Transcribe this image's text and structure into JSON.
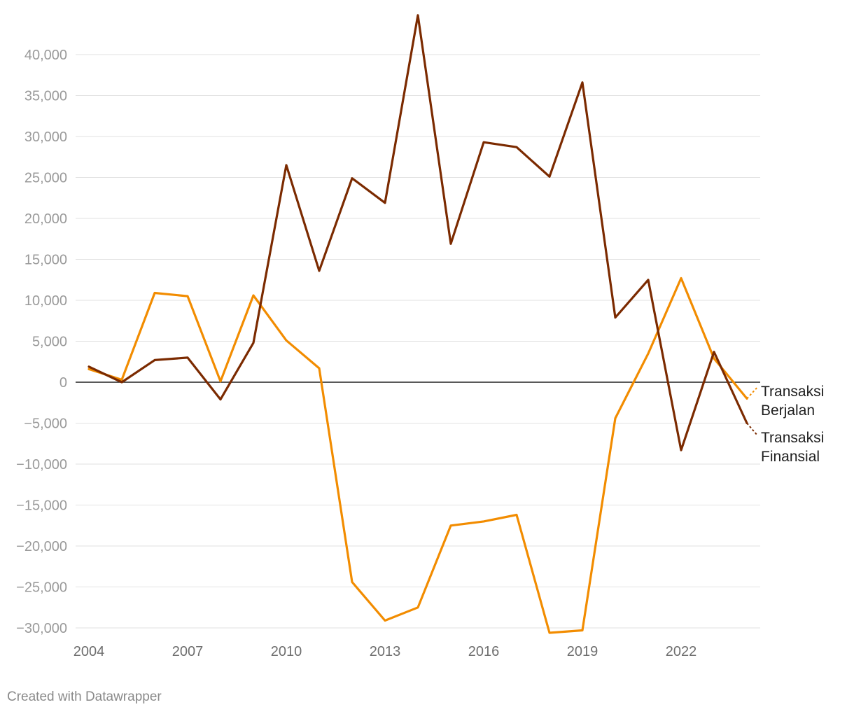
{
  "chart_data": {
    "type": "line",
    "title": "",
    "xlabel": "",
    "ylabel": "",
    "x": [
      2004,
      2005,
      2006,
      2007,
      2008,
      2009,
      2010,
      2011,
      2012,
      2013,
      2014,
      2015,
      2016,
      2017,
      2018,
      2019,
      2020,
      2021,
      2022,
      2023,
      2024
    ],
    "x_ticks": [
      "2004",
      "2007",
      "2010",
      "2013",
      "2016",
      "2019",
      "2022"
    ],
    "x_tick_values": [
      2004,
      2007,
      2010,
      2013,
      2016,
      2019,
      2022
    ],
    "y_ticks": [
      "40,000",
      "35,000",
      "30,000",
      "25,000",
      "20,000",
      "15,000",
      "10,000",
      "5,000",
      "0",
      "−5,000",
      "−10,000",
      "−15,000",
      "−20,000",
      "−25,000",
      "−30,000"
    ],
    "y_tick_values": [
      40000,
      35000,
      30000,
      25000,
      20000,
      15000,
      10000,
      5000,
      0,
      -5000,
      -10000,
      -15000,
      -20000,
      -25000,
      -30000
    ],
    "xlim": [
      2004,
      2024.4
    ],
    "ylim": [
      -30500,
      45000
    ],
    "grid": true,
    "series": [
      {
        "name": "Transaksi Berjalan",
        "label_lines": [
          "Transaksi",
          "Berjalan"
        ],
        "color": "#f28c00",
        "values": [
          1600,
          300,
          10900,
          10500,
          100,
          10600,
          5100,
          1700,
          -24400,
          -29100,
          -27500,
          -17500,
          -17000,
          -16200,
          -30600,
          -30300,
          -4400,
          3500,
          12700,
          2900,
          -2000
        ],
        "projection_end": [
          2024.3,
          -700
        ]
      },
      {
        "name": "Transaksi Finansial",
        "label_lines": [
          "Transaksi",
          "Finansial"
        ],
        "color": "#7b2a00",
        "values": [
          1900,
          0,
          2700,
          3000,
          -2100,
          4800,
          26500,
          13600,
          24900,
          21900,
          44800,
          16900,
          29300,
          28700,
          25100,
          36600,
          7900,
          12500,
          -8300,
          3700,
          -5000
        ],
        "projection_end": [
          2024.3,
          -6400
        ]
      }
    ]
  },
  "footer": {
    "credit": "Created with Datawrapper"
  }
}
